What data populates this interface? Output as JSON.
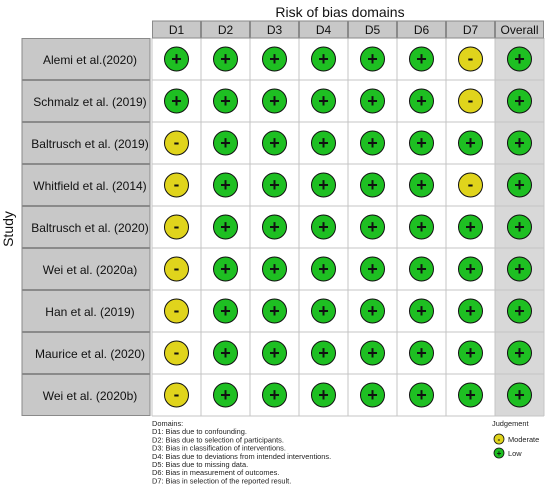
{
  "chart_data": {
    "type": "table",
    "title": "Risk of bias domains",
    "y_axis_label": "Study",
    "domains": [
      "D1",
      "D2",
      "D3",
      "D4",
      "D5",
      "D6",
      "D7",
      "Overall"
    ],
    "studies": [
      {
        "name": "Alemi et al.(2020)",
        "judgements": [
          "+",
          "+",
          "+",
          "+",
          "+",
          "+",
          "-",
          "+"
        ]
      },
      {
        "name": "Schmalz et al. (2019)",
        "judgements": [
          "+",
          "+",
          "+",
          "+",
          "+",
          "+",
          "-",
          "+"
        ]
      },
      {
        "name": "Baltrusch et al. (2019)",
        "judgements": [
          "-",
          "+",
          "+",
          "+",
          "+",
          "+",
          "+",
          "+"
        ]
      },
      {
        "name": "Whitfield et al. (2014)",
        "judgements": [
          "-",
          "+",
          "+",
          "+",
          "+",
          "+",
          "-",
          "+"
        ]
      },
      {
        "name": "Baltrusch et al. (2020)",
        "judgements": [
          "-",
          "+",
          "+",
          "+",
          "+",
          "+",
          "+",
          "+"
        ]
      },
      {
        "name": "Wei et al. (2020a)",
        "judgements": [
          "-",
          "+",
          "+",
          "+",
          "+",
          "+",
          "+",
          "+"
        ]
      },
      {
        "name": "Han et al. (2019)",
        "judgements": [
          "-",
          "+",
          "+",
          "+",
          "+",
          "+",
          "+",
          "+"
        ]
      },
      {
        "name": "Maurice et al. (2020)",
        "judgements": [
          "-",
          "+",
          "+",
          "+",
          "+",
          "+",
          "+",
          "+"
        ]
      },
      {
        "name": "Wei et al. (2020b)",
        "judgements": [
          "-",
          "+",
          "+",
          "+",
          "+",
          "+",
          "+",
          "+"
        ]
      }
    ],
    "domains_legend": {
      "heading": "Domains:",
      "items": [
        "D1: Bias due to confounding.",
        "D2: Bias due to selection of participants.",
        "D3: Bias in classification of interventions.",
        "D4: Bias due to deviations from intended interventions.",
        "D5: Bias due to missing data.",
        "D6: Bias in measurement of outcomes.",
        "D7: Bias in selection of the reported result."
      ]
    },
    "judgement_legend": {
      "heading": "Judgement",
      "items": [
        {
          "symbol": "-",
          "label": "Moderate",
          "color": "#e0d41c"
        },
        {
          "symbol": "+",
          "label": "Low",
          "color": "#1ebf22"
        }
      ]
    },
    "colors": {
      "low": "#1ebf22",
      "moderate": "#e0d41c",
      "label_box": "#c8c8c8",
      "overall_column": "#d8d8d8",
      "grid_line": "#8a8a8a"
    }
  }
}
